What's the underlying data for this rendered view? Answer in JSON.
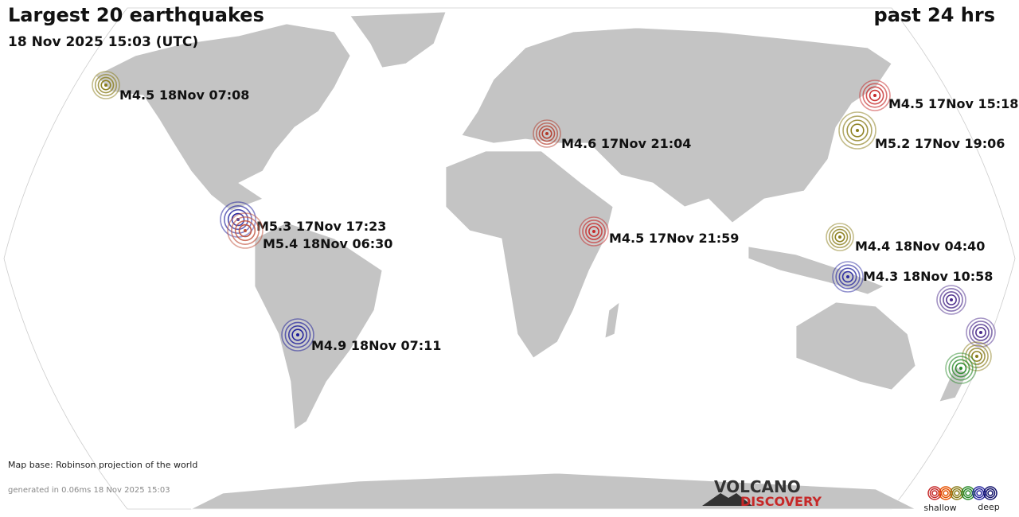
{
  "header": {
    "title": "Largest 20 earthquakes",
    "subtitle": "18 Nov 2025 15:03 (UTC)",
    "period": "past 24 hrs"
  },
  "quakes": [
    {
      "label": "M4.5 18Nov 07:08"
    },
    {
      "label": "M4.5 17Nov 15:18"
    },
    {
      "label": "M4.6 17Nov 21:04"
    },
    {
      "label": "M5.2 17Nov 19:06"
    },
    {
      "label": "M5.3 17Nov 17:23"
    },
    {
      "label": "M5.4 18Nov 06:30"
    },
    {
      "label": "M4.5 17Nov 21:59"
    },
    {
      "label": "M4.4 18Nov 04:40"
    },
    {
      "label": "M4.3 18Nov 10:58"
    },
    {
      "label": "M4.9 18Nov 07:11"
    }
  ],
  "footer": {
    "map_base": "Map base: Robinson projection of the world",
    "generated": "generated in 0.06ms 18 Nov 2025 15:03"
  },
  "logo": {
    "line1": "VOLCANO",
    "line2": "DISCOVERY"
  },
  "legend": {
    "shallow": "shallow",
    "deep": "deep"
  }
}
